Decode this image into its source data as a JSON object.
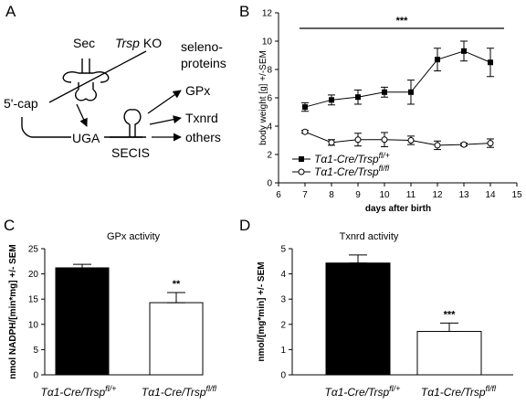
{
  "panels": {
    "a": "A",
    "b": "B",
    "c": "C",
    "d": "D"
  },
  "diagram": {
    "sec": "Sec",
    "trsp": "Trsp",
    "ko": " KO",
    "seleno1": "seleno-",
    "seleno2": "proteins",
    "gpx": "GPx",
    "txnrd": "Txnrd",
    "others": "others",
    "cap": "5'-cap",
    "uga": "UGA",
    "secis": "SECIS"
  },
  "legend": {
    "prefix": "Tα1-Cre/Trsp",
    "het_sup": "fl/+",
    "ko_sup": "fl/fl"
  },
  "colors": {
    "het_bar": "#000000",
    "ko_bar": "#ffffff"
  },
  "chart_data": [
    {
      "panel": "B",
      "type": "line",
      "xlabel": "days after birth",
      "ylabel": "body weight [g] +/-SEM",
      "xlim": [
        6,
        15
      ],
      "ylim": [
        0,
        12
      ],
      "xticks": [
        6,
        7,
        8,
        9,
        10,
        11,
        12,
        13,
        14,
        15
      ],
      "yticks": [
        0,
        2,
        4,
        6,
        8,
        10,
        12
      ],
      "significance": "***",
      "x": [
        7,
        8,
        9,
        10,
        11,
        12,
        13,
        14
      ],
      "series": [
        {
          "name": "Tα1-Cre/Trsp fl/+",
          "marker": "filled-square",
          "values": [
            5.35,
            5.85,
            6.05,
            6.4,
            6.4,
            8.7,
            9.3,
            8.5
          ],
          "err": [
            0.3,
            0.35,
            0.5,
            0.35,
            0.85,
            0.8,
            0.7,
            1.0
          ]
        },
        {
          "name": "Tα1-Cre/Trsp fl/fl",
          "marker": "open-circle",
          "values": [
            3.6,
            2.85,
            3.05,
            3.05,
            3.0,
            2.65,
            2.7,
            2.8
          ],
          "err": [
            0.1,
            0.2,
            0.45,
            0.5,
            0.3,
            0.3,
            0.1,
            0.3
          ]
        }
      ]
    },
    {
      "panel": "C",
      "type": "bar",
      "title": "GPx activity",
      "ylabel": "nmol NADPH/[min*mg] +/- SEM",
      "ylim": [
        0,
        25
      ],
      "yticks": [
        0,
        5,
        10,
        15,
        20,
        25
      ],
      "categories": [
        "Tα1-Cre/Trsp fl/+",
        "Tα1-Cre/Trsp fl/fl"
      ],
      "values": [
        21.2,
        14.3
      ],
      "err": [
        0.7,
        2.0
      ],
      "significance": "**"
    },
    {
      "panel": "D",
      "type": "bar",
      "title": "Txnrd activity",
      "ylabel": "nmol/[mg*min] +/- SEM",
      "ylim": [
        0,
        5
      ],
      "yticks": [
        0,
        1,
        2,
        3,
        4,
        5
      ],
      "categories": [
        "Tα1-Cre/Trsp fl/+",
        "Tα1-Cre/Trsp fl/fl"
      ],
      "values": [
        4.43,
        1.72
      ],
      "err": [
        0.32,
        0.33
      ],
      "significance": "***"
    }
  ]
}
